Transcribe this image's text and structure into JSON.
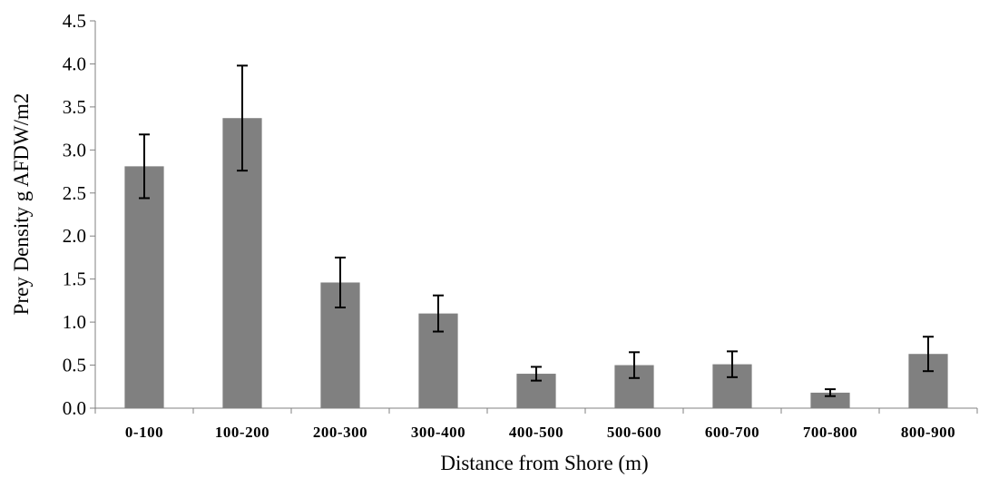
{
  "chart_data": {
    "type": "bar",
    "title": "",
    "xlabel": "Distance from Shore (m)",
    "ylabel": "Prey Density g AFDW/m2",
    "categories": [
      "0-100",
      "100-200",
      "200-300",
      "300-400",
      "400-500",
      "500-600",
      "600-700",
      "700-800",
      "800-900"
    ],
    "values": [
      2.81,
      3.37,
      1.46,
      1.1,
      0.4,
      0.5,
      0.51,
      0.18,
      0.63
    ],
    "error_low": [
      2.44,
      2.76,
      1.17,
      0.89,
      0.32,
      0.35,
      0.36,
      0.14,
      0.43
    ],
    "error_high": [
      3.18,
      3.98,
      1.75,
      1.31,
      0.48,
      0.65,
      0.66,
      0.22,
      0.83
    ],
    "ylim": [
      0,
      4.5
    ],
    "yticks": [
      "0.0",
      "0.5",
      "1.0",
      "1.5",
      "2.0",
      "2.5",
      "3.0",
      "3.5",
      "4.0",
      "4.5"
    ],
    "grid": false,
    "legend": "none",
    "bar_color": "#808080",
    "error_color": "#000000",
    "axis_color": "#808080"
  }
}
